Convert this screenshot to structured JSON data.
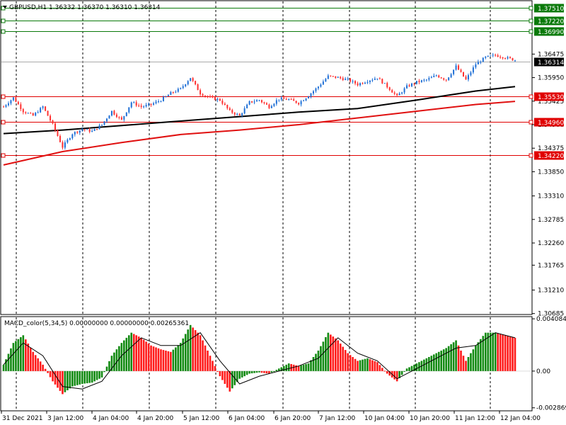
{
  "symbol_header": "GBPUSD,H1  1.36332 1.36370 1.36310 1.36314",
  "macd_header": "MACD_color(5,34,5) 0.00000000 0.00000000 0.00265361",
  "colors": {
    "bull_candle": "#1e6fd6",
    "bear_candle": "#ff3030",
    "ma_fast": "#000000",
    "ma_slow": "#e01010",
    "level_green": "#0a7a0a",
    "level_red": "#e00000",
    "hist_up": "#128a12",
    "hist_down": "#ff1a1a",
    "signal": "#000000",
    "current_price_bg": "#000000"
  },
  "chart_data": {
    "type": "candlestick",
    "price_axis_ticks": [
      "1.36475",
      "1.35950",
      "1.35425",
      "1.34900",
      "1.34375",
      "1.33850",
      "1.33310",
      "1.32785",
      "1.32260",
      "1.31765",
      "1.31210",
      "1.30685"
    ],
    "price_range": [
      1.3068,
      1.3765
    ],
    "levels": [
      {
        "label": "1.37510",
        "value": 1.3751,
        "kind": "resistance",
        "color": "green"
      },
      {
        "label": "1.37220",
        "value": 1.3722,
        "kind": "resistance",
        "color": "green"
      },
      {
        "label": "1.36990",
        "value": 1.3699,
        "kind": "resistance",
        "color": "green"
      },
      {
        "label": "1.35530",
        "value": 1.3553,
        "kind": "support",
        "color": "red"
      },
      {
        "label": "1.34960",
        "value": 1.3496,
        "kind": "support",
        "color": "red"
      },
      {
        "label": "1.34220",
        "value": 1.3422,
        "kind": "support",
        "color": "red"
      }
    ],
    "current_price": {
      "label": "1.36314",
      "value": 1.36314
    },
    "time_labels": [
      "31 Dec 2021",
      "3 Jan 12:00",
      "4 Jan 04:00",
      "4 Jan 20:00",
      "5 Jan 12:00",
      "6 Jan 04:00",
      "6 Jan 20:00",
      "7 Jan 12:00",
      "10 Jan 04:00",
      "10 Jan 20:00",
      "11 Jan 12:00",
      "12 Jan 04:00"
    ],
    "close_path": [
      [
        0,
        1.353
      ],
      [
        4,
        1.355
      ],
      [
        8,
        1.352
      ],
      [
        12,
        1.351
      ],
      [
        16,
        1.353
      ],
      [
        20,
        1.349
      ],
      [
        24,
        1.344
      ],
      [
        28,
        1.347
      ],
      [
        32,
        1.348
      ],
      [
        36,
        1.3475
      ],
      [
        40,
        1.349
      ],
      [
        44,
        1.352
      ],
      [
        48,
        1.35
      ],
      [
        52,
        1.354
      ],
      [
        56,
        1.353
      ],
      [
        60,
        1.3535
      ],
      [
        64,
        1.3545
      ],
      [
        68,
        1.356
      ],
      [
        72,
        1.357
      ],
      [
        76,
        1.3595
      ],
      [
        80,
        1.356
      ],
      [
        84,
        1.355
      ],
      [
        88,
        1.3545
      ],
      [
        92,
        1.352
      ],
      [
        96,
        1.351
      ],
      [
        100,
        1.354
      ],
      [
        104,
        1.3545
      ],
      [
        108,
        1.353
      ],
      [
        112,
        1.3548
      ],
      [
        116,
        1.3546
      ],
      [
        120,
        1.3538
      ],
      [
        124,
        1.3555
      ],
      [
        128,
        1.3575
      ],
      [
        132,
        1.3598
      ],
      [
        136,
        1.3595
      ],
      [
        140,
        1.359
      ],
      [
        144,
        1.358
      ],
      [
        148,
        1.3588
      ],
      [
        152,
        1.3595
      ],
      [
        156,
        1.3575
      ],
      [
        160,
        1.3553
      ],
      [
        164,
        1.3575
      ],
      [
        168,
        1.3585
      ],
      [
        172,
        1.359
      ],
      [
        176,
        1.36
      ],
      [
        180,
        1.359
      ],
      [
        184,
        1.362
      ],
      [
        188,
        1.359
      ],
      [
        192,
        1.3625
      ],
      [
        196,
        1.364
      ],
      [
        200,
        1.3645
      ],
      [
        204,
        1.364
      ],
      [
        208,
        1.3634
      ]
    ],
    "ma_fast_path": [
      [
        0,
        1.347
      ],
      [
        24,
        1.3478
      ],
      [
        48,
        1.3488
      ],
      [
        72,
        1.3498
      ],
      [
        96,
        1.3508
      ],
      [
        120,
        1.3518
      ],
      [
        144,
        1.3526
      ],
      [
        168,
        1.3545
      ],
      [
        192,
        1.3565
      ],
      [
        208,
        1.3575
      ]
    ],
    "ma_slow_path": [
      [
        0,
        1.34
      ],
      [
        24,
        1.343
      ],
      [
        48,
        1.345
      ],
      [
        72,
        1.3468
      ],
      [
        96,
        1.3478
      ],
      [
        120,
        1.349
      ],
      [
        144,
        1.3505
      ],
      [
        168,
        1.352
      ],
      [
        192,
        1.3535
      ],
      [
        208,
        1.3542
      ]
    ],
    "macd": {
      "axis_ticks": [
        "0.0040842",
        "0.00",
        "-0.002869"
      ],
      "range": [
        -0.00305,
        0.0042
      ],
      "histogram": [
        [
          0,
          0.0005
        ],
        [
          4,
          0.0022
        ],
        [
          8,
          0.0028
        ],
        [
          12,
          0.0015
        ],
        [
          16,
          0.0005
        ],
        [
          20,
          -0.0008
        ],
        [
          24,
          -0.0018
        ],
        [
          28,
          -0.0012
        ],
        [
          32,
          -0.001
        ],
        [
          36,
          -0.0009
        ],
        [
          40,
          -0.0005
        ],
        [
          44,
          0.0012
        ],
        [
          48,
          0.0022
        ],
        [
          52,
          0.003
        ],
        [
          56,
          0.0026
        ],
        [
          60,
          0.002
        ],
        [
          64,
          0.0017
        ],
        [
          68,
          0.0015
        ],
        [
          72,
          0.0022
        ],
        [
          76,
          0.0036
        ],
        [
          80,
          0.0028
        ],
        [
          84,
          0.0012
        ],
        [
          88,
          -0.0004
        ],
        [
          92,
          -0.0016
        ],
        [
          96,
          -0.0006
        ],
        [
          100,
          -0.0002
        ],
        [
          104,
          -0.0001
        ],
        [
          108,
          -0.0002
        ],
        [
          112,
          0.0002
        ],
        [
          116,
          0.0006
        ],
        [
          120,
          0.0004
        ],
        [
          124,
          0.0006
        ],
        [
          128,
          0.0016
        ],
        [
          132,
          0.003
        ],
        [
          136,
          0.0024
        ],
        [
          140,
          0.0014
        ],
        [
          144,
          0.0008
        ],
        [
          148,
          0.001
        ],
        [
          152,
          0.0007
        ],
        [
          156,
          -0.0002
        ],
        [
          160,
          -0.0008
        ],
        [
          164,
          0.0002
        ],
        [
          168,
          0.0006
        ],
        [
          172,
          0.001
        ],
        [
          176,
          0.0014
        ],
        [
          180,
          0.0018
        ],
        [
          184,
          0.0024
        ],
        [
          188,
          0.0008
        ],
        [
          192,
          0.002
        ],
        [
          196,
          0.003
        ],
        [
          200,
          0.003
        ],
        [
          204,
          0.0028
        ],
        [
          208,
          0.0026
        ]
      ],
      "signal": [
        [
          0,
          0.0005
        ],
        [
          8,
          0.0022
        ],
        [
          16,
          0.0012
        ],
        [
          24,
          -0.0012
        ],
        [
          32,
          -0.0014
        ],
        [
          40,
          -0.0008
        ],
        [
          48,
          0.0012
        ],
        [
          56,
          0.0026
        ],
        [
          64,
          0.002
        ],
        [
          72,
          0.002
        ],
        [
          80,
          0.003
        ],
        [
          88,
          0.0008
        ],
        [
          96,
          -0.001
        ],
        [
          104,
          -0.0004
        ],
        [
          112,
          0.0
        ],
        [
          120,
          0.0004
        ],
        [
          128,
          0.001
        ],
        [
          136,
          0.0026
        ],
        [
          144,
          0.0014
        ],
        [
          152,
          0.0008
        ],
        [
          160,
          -0.0006
        ],
        [
          168,
          0.0002
        ],
        [
          176,
          0.001
        ],
        [
          184,
          0.0018
        ],
        [
          192,
          0.002
        ],
        [
          200,
          0.003
        ],
        [
          208,
          0.0026
        ]
      ]
    }
  }
}
